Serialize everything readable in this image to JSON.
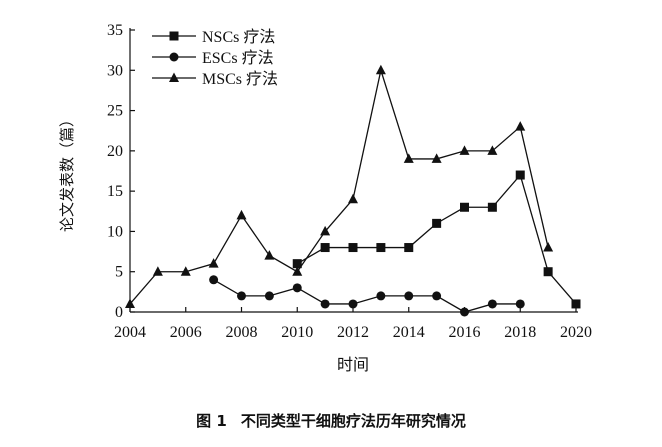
{
  "caption": {
    "label": "图 1",
    "text": "不同类型干细胞疗法历年研究情况"
  },
  "chart_data": {
    "type": "line",
    "xlabel": "时间",
    "ylabel": "论文发表数（篇）",
    "xlim": [
      2004,
      2020
    ],
    "ylim": [
      0,
      35
    ],
    "xticks": [
      2004,
      2006,
      2008,
      2010,
      2012,
      2014,
      2016,
      2018,
      2020
    ],
    "yticks": [
      0,
      5,
      10,
      15,
      20,
      25,
      30,
      35
    ],
    "grid": false,
    "legend": "top-left",
    "series": [
      {
        "name": "NSCs 疗法",
        "marker": "square",
        "x": [
          2010,
          2011,
          2012,
          2013,
          2014,
          2015,
          2016,
          2017,
          2018,
          2019,
          2020
        ],
        "y": [
          6,
          8,
          8,
          8,
          8,
          11,
          13,
          13,
          17,
          5,
          1
        ]
      },
      {
        "name": "ESCs 疗法",
        "marker": "circle",
        "x": [
          2007,
          2008,
          2009,
          2010,
          2011,
          2012,
          2013,
          2014,
          2015,
          2016,
          2017,
          2018
        ],
        "y": [
          4,
          2,
          2,
          3,
          1,
          1,
          2,
          2,
          2,
          0,
          1,
          1
        ]
      },
      {
        "name": "MSCs 疗法",
        "marker": "triangle",
        "x": [
          2004,
          2005,
          2006,
          2007,
          2008,
          2009,
          2010,
          2011,
          2012,
          2013,
          2014,
          2015,
          2016,
          2017,
          2018,
          2019
        ],
        "y": [
          1,
          5,
          5,
          6,
          12,
          7,
          5,
          10,
          14,
          30,
          19,
          19,
          20,
          20,
          23,
          8
        ]
      }
    ]
  }
}
